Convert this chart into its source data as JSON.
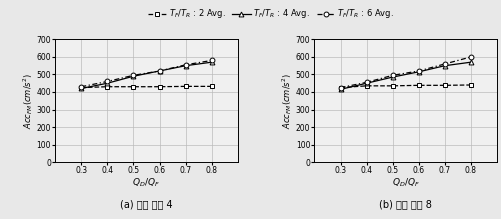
{
  "x": [
    0.3,
    0.4,
    0.5,
    0.6,
    0.7,
    0.8
  ],
  "panel_a": {
    "series1": [
      425,
      430,
      430,
      430,
      432,
      432
    ],
    "series2": [
      420,
      450,
      490,
      520,
      550,
      570
    ],
    "series3": [
      430,
      460,
      495,
      520,
      555,
      580
    ]
  },
  "panel_b": {
    "series1": [
      425,
      435,
      435,
      438,
      438,
      440
    ],
    "series2": [
      415,
      450,
      485,
      515,
      550,
      570
    ],
    "series3": [
      425,
      455,
      495,
      520,
      560,
      600
    ]
  },
  "xlabel": "$Q_D/Q_F$",
  "ylabel": "$Acc_{FM}(cm/s^2)$",
  "ylim": [
    0,
    700
  ],
  "xlim": [
    0.2,
    0.9
  ],
  "yticks": [
    0,
    100,
    200,
    300,
    400,
    500,
    600,
    700
  ],
  "xticks": [
    0.3,
    0.4,
    0.5,
    0.6,
    0.7,
    0.8
  ],
  "label_a": "(a) 변형 비율 4",
  "label_b": "(b) 변형 비율 8",
  "legend_labels": [
    "$T_F/T_R$ : 2 Avg.",
    "$T_F/T_R$ : 4 Avg.",
    "$T_F/T_R$ : 6 Avg."
  ],
  "background_color": "#f0f0f0",
  "grid_color": "#bbbbbb"
}
